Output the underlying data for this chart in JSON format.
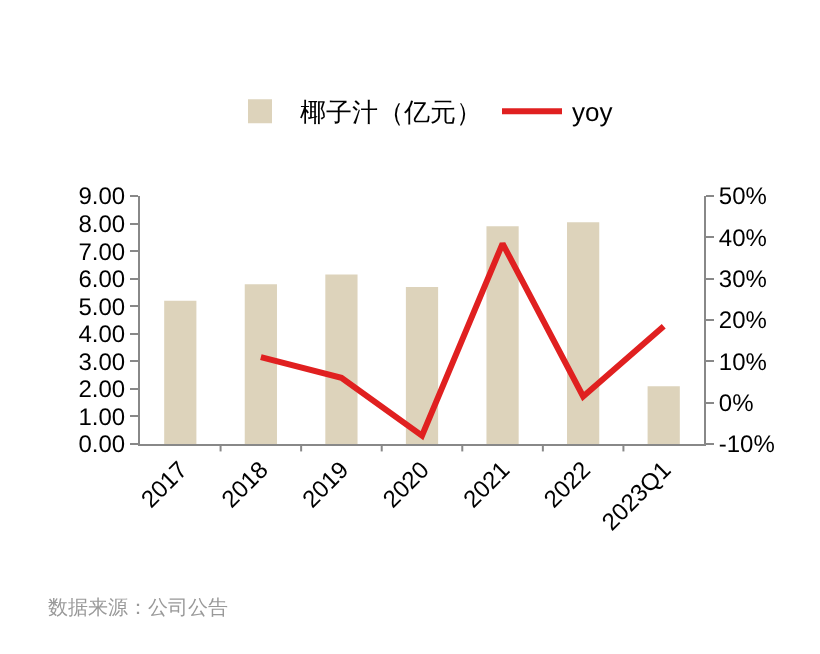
{
  "chart_data": {
    "type": "bar",
    "categories": [
      "2017",
      "2018",
      "2019",
      "2020",
      "2021",
      "2022",
      "2023Q1"
    ],
    "series": [
      {
        "name": "椰子汁（亿元）",
        "color": "#ddd3bb",
        "values": [
          5.2,
          5.8,
          6.15,
          5.7,
          7.9,
          8.05,
          2.1
        ]
      },
      {
        "name": "yoy",
        "type": "line",
        "axis": "y2",
        "color": "#e02020",
        "values": [
          null,
          11,
          6,
          -8,
          38.5,
          1.5,
          18.5
        ]
      }
    ],
    "ylim": [
      0,
      9
    ],
    "yticks": [
      {
        "value": 0,
        "label": "0.00"
      },
      {
        "value": 1,
        "label": "1.00"
      },
      {
        "value": 2,
        "label": "2.00"
      },
      {
        "value": 3,
        "label": "3.00"
      },
      {
        "value": 4,
        "label": "4.00"
      },
      {
        "value": 5,
        "label": "5.00"
      },
      {
        "value": 6,
        "label": "6.00"
      },
      {
        "value": 7,
        "label": "7.00"
      },
      {
        "value": 8,
        "label": "8.00"
      },
      {
        "value": 9,
        "label": "9.00"
      }
    ],
    "y2lim": [
      -10,
      50
    ],
    "y2ticks": [
      {
        "value": -10,
        "label": "-10%"
      },
      {
        "value": 0,
        "label": "0%"
      },
      {
        "value": 10,
        "label": "10%"
      },
      {
        "value": 20,
        "label": "20%"
      },
      {
        "value": 30,
        "label": "30%"
      },
      {
        "value": 40,
        "label": "40%"
      },
      {
        "value": 50,
        "label": "50%"
      }
    ],
    "grid": false,
    "legend": "top",
    "marker": "none",
    "annotations": [
      "数据来源：公司公告"
    ]
  }
}
